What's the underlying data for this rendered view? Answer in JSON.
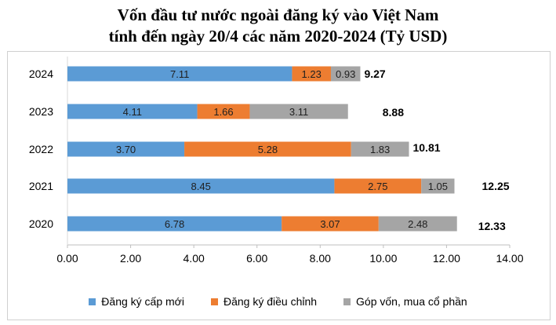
{
  "chart_data": {
    "type": "bar",
    "orientation": "horizontal",
    "stacked": true,
    "title_line1": "Vốn đầu tư nước ngoài đăng ký vào Việt Nam",
    "title_line2": "tính đến ngày 20/4 các năm 2020-2024 (Tỷ USD)",
    "categories": [
      "2024",
      "2023",
      "2022",
      "2021",
      "2020"
    ],
    "series": [
      {
        "name": "Đăng ký cấp mới",
        "color": "#5b9bd5",
        "values": [
          7.11,
          4.11,
          3.7,
          8.45,
          6.78
        ],
        "labels": [
          "7.11",
          "4.11",
          "3.70",
          "8.45",
          "6.78"
        ]
      },
      {
        "name": "Đăng ký điều chỉnh",
        "color": "#ed7d31",
        "values": [
          1.23,
          1.66,
          5.28,
          2.75,
          3.07
        ],
        "labels": [
          "1.23",
          "1.66",
          "5.28",
          "2.75",
          "3.07"
        ]
      },
      {
        "name": "Góp vốn, mua cổ phần",
        "color": "#a5a5a5",
        "values": [
          0.93,
          3.11,
          1.83,
          1.05,
          2.48
        ],
        "labels": [
          "0.93",
          "3.11",
          "1.83",
          "1.05",
          "2.48"
        ]
      }
    ],
    "totals": [
      "9.27",
      "8.88",
      "10.81",
      "12.25",
      "12.33"
    ],
    "xlim": [
      0,
      14
    ],
    "xticks": [
      "0.00",
      "2.00",
      "4.00",
      "6.00",
      "8.00",
      "10.00",
      "12.00",
      "14.00"
    ],
    "grid": false,
    "legend_position": "bottom"
  }
}
